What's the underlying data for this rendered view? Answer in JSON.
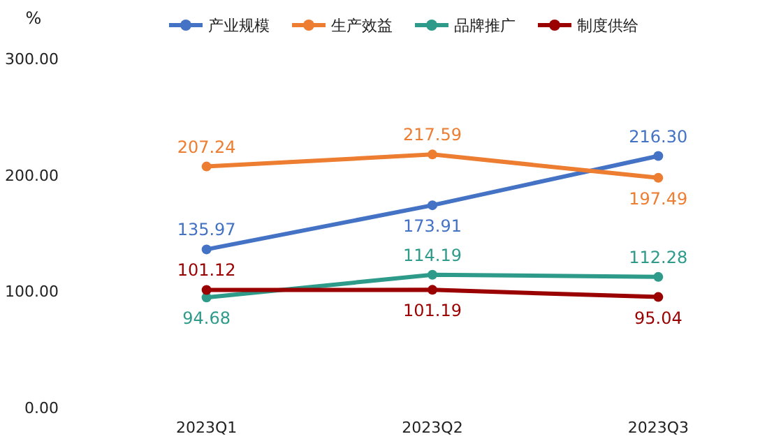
{
  "chart_data": {
    "type": "line",
    "ylabel": "%",
    "categories": [
      "2023Q1",
      "2023Q2",
      "2023Q3"
    ],
    "ylim": [
      0,
      300
    ],
    "yticks": [
      {
        "value": 0,
        "label": "0.00"
      },
      {
        "value": 100,
        "label": "100.00"
      },
      {
        "value": 200,
        "label": "200.00"
      },
      {
        "value": 300,
        "label": "300.00"
      }
    ],
    "series": [
      {
        "name": "产业规模",
        "color": "#4472c4",
        "values": [
          135.97,
          173.91,
          216.3
        ],
        "value_labels": [
          "135.97",
          "173.91",
          "216.30"
        ]
      },
      {
        "name": "生产效益",
        "color": "#ed7d31",
        "values": [
          207.24,
          217.59,
          197.49
        ],
        "value_labels": [
          "207.24",
          "217.59",
          "197.49"
        ]
      },
      {
        "name": "品牌推广",
        "color": "#2e9b8a",
        "values": [
          94.68,
          114.19,
          112.28
        ],
        "value_labels": [
          "94.68",
          "114.19",
          "112.28"
        ]
      },
      {
        "name": "制度供给",
        "color": "#9b0000",
        "values": [
          101.12,
          101.19,
          95.04
        ],
        "value_labels": [
          "101.12",
          "101.19",
          "95.04"
        ]
      }
    ],
    "grid": false,
    "legend": "top",
    "marker": "circle",
    "line_style": "solid"
  }
}
